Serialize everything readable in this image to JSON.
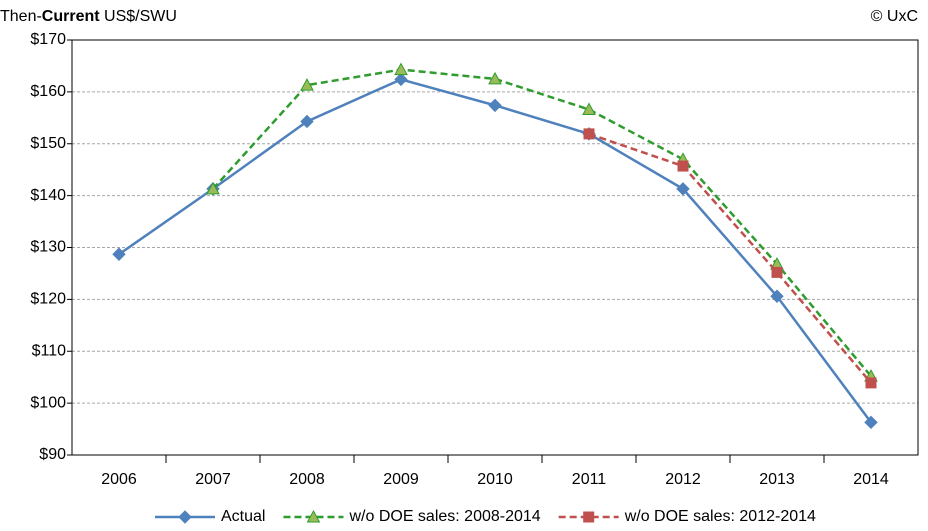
{
  "chart_data": {
    "type": "line",
    "title": [
      "Then-",
      "Current",
      " US$/SWU"
    ],
    "source": "© UxC",
    "categories": [
      "2006",
      "2007",
      "2008",
      "2009",
      "2010",
      "2011",
      "2012",
      "2013",
      "2014"
    ],
    "series": [
      {
        "name": "Actual",
        "color": "#4f81bd",
        "linestyle": "solid",
        "marker": "diamond",
        "values": [
          128.7,
          141.3,
          154.3,
          162.4,
          157.4,
          151.9,
          141.3,
          120.6,
          96.3
        ]
      },
      {
        "name": "w/o DOE sales: 2008-2014",
        "color": "#2e9c2e",
        "marker_color": "#9bbb59",
        "linestyle": "dashed",
        "marker": "triangle",
        "values": [
          null,
          141.3,
          161.3,
          164.3,
          162.5,
          156.6,
          147.0,
          126.8,
          105.2
        ]
      },
      {
        "name": "w/o DOE sales: 2012-2014",
        "color": "#c0504d",
        "linestyle": "dashed",
        "marker": "square",
        "values": [
          null,
          null,
          null,
          null,
          null,
          151.9,
          145.7,
          125.2,
          103.9
        ]
      }
    ],
    "ylim": [
      90,
      170
    ],
    "yticks": [
      {
        "value": 90,
        "label": "$90"
      },
      {
        "value": 100,
        "label": "$100"
      },
      {
        "value": 110,
        "label": "$110"
      },
      {
        "value": 120,
        "label": "$120"
      },
      {
        "value": 130,
        "label": "$130"
      },
      {
        "value": 140,
        "label": "$140"
      },
      {
        "value": 150,
        "label": "$150"
      },
      {
        "value": 160,
        "label": "$160"
      },
      {
        "value": 170,
        "label": "$170"
      }
    ],
    "grid": true,
    "legend": "bottom"
  }
}
